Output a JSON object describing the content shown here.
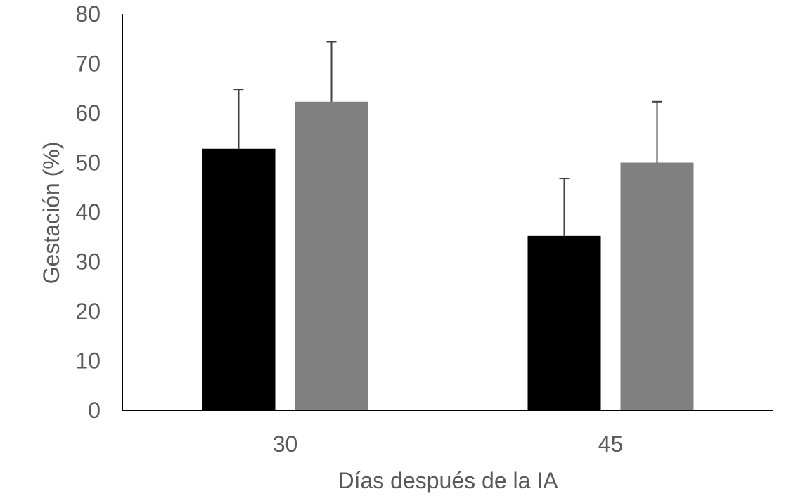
{
  "chart_data": {
    "type": "bar",
    "categories": [
      "30",
      "45"
    ],
    "series": [
      {
        "color": "#000000",
        "values": [
          52.8,
          35.2
        ],
        "error_upper": [
          64.8,
          46.8
        ]
      },
      {
        "color": "#808080",
        "values": [
          62.3,
          50.0
        ],
        "error_upper": [
          74.4,
          62.3
        ]
      }
    ],
    "xlabel": "Días después de la IA",
    "ylabel": "Gestación (%)",
    "ylim": [
      0,
      80
    ],
    "yticks": [
      "0",
      "10",
      "20",
      "30",
      "40",
      "50",
      "60",
      "70",
      "80"
    ],
    "grid": false,
    "legend": "none"
  }
}
